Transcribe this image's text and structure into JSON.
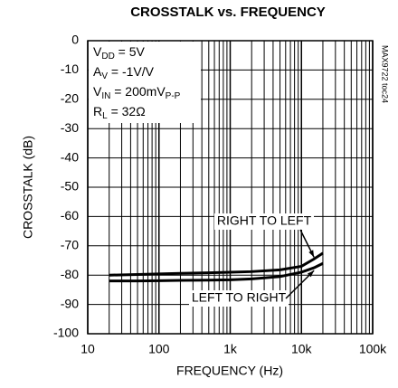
{
  "chart_data": {
    "type": "line",
    "title": "CROSSTALK vs. FREQUENCY",
    "xlabel": "FREQUENCY (Hz)",
    "ylabel": "CROSSTALK (dB)",
    "side_note": "MAX9722 toc24",
    "conditions": [
      [
        "V",
        "DD",
        " = 5V"
      ],
      [
        "A",
        "V",
        " = -1V/V"
      ],
      [
        "V",
        "IN",
        " = 200mV",
        "P-P"
      ],
      [
        "R",
        "L",
        " = 32Ω"
      ]
    ],
    "xscale": "log",
    "grid": true,
    "color": "#000000",
    "x": [
      20,
      50,
      100,
      200,
      500,
      1000,
      2000,
      5000,
      10000,
      15000,
      20000
    ],
    "series": [
      {
        "name": "RIGHT TO LEFT",
        "color": "#000000",
        "values": [
          -80,
          -79.8,
          -79.6,
          -79.4,
          -79.2,
          -79,
          -78.8,
          -78.2,
          -77,
          -74.5,
          -72.5
        ]
      },
      {
        "name": "LEFT TO RIGHT",
        "color": "#000000",
        "values": [
          -82,
          -82,
          -81.9,
          -81.8,
          -81.7,
          -81.6,
          -81.3,
          -80.5,
          -79,
          -77.5,
          -76
        ]
      }
    ],
    "xlim": [
      10,
      100000
    ],
    "xticks": [
      10,
      100,
      {
        "value": 1000,
        "label": "1k"
      },
      {
        "value": 10000,
        "label": "10k"
      },
      {
        "value": 100000,
        "label": "100k"
      }
    ],
    "ylim": [
      -100,
      0
    ],
    "yticks": [
      0,
      -10,
      -20,
      -30,
      -40,
      -50,
      -60,
      -70,
      -80,
      -90,
      -100
    ]
  }
}
